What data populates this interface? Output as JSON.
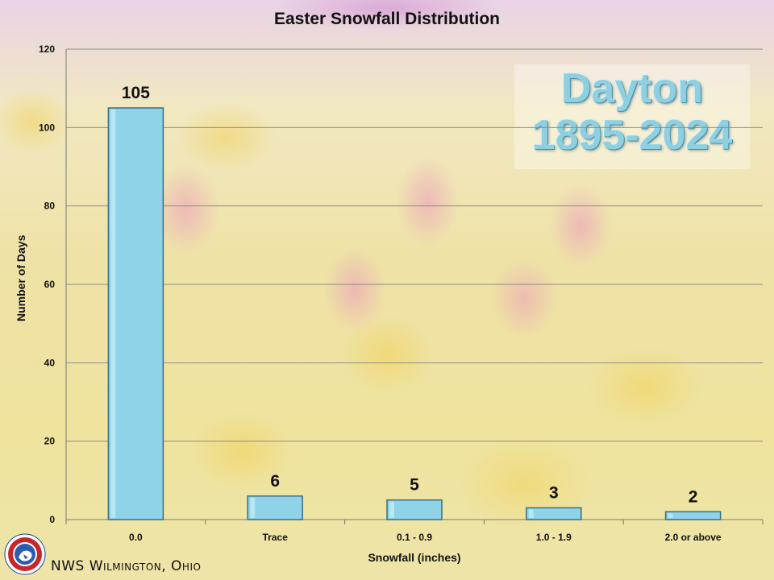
{
  "chart_data": {
    "type": "bar",
    "title": "Easter Snowfall Distribution",
    "xlabel": "Snowfall (inches)",
    "ylabel": "Number of Days",
    "categories": [
      "0.0",
      "Trace",
      "0.1 - 0.9",
      "1.0 - 1.9",
      "2.0 or above"
    ],
    "values": [
      105,
      6,
      5,
      3,
      2
    ],
    "data_labels": [
      "105",
      "6",
      "5",
      "3",
      "2"
    ],
    "ylim": [
      0,
      120
    ],
    "y_ticks": [
      0,
      20,
      40,
      60,
      80,
      100,
      120
    ],
    "y_tick_labels": [
      "0",
      "20",
      "40",
      "60",
      "80",
      "100",
      "120"
    ],
    "grid": true,
    "bar_color": "#8fd3e8",
    "bar_edge_color": "#3a6e80"
  },
  "overlay": {
    "station": "Dayton",
    "years": "1895-2024",
    "text_color": "#8fd0e0"
  },
  "footer": {
    "office": "NWS Wilmington, Ohio",
    "logo_icon": "nws-logo-icon"
  }
}
